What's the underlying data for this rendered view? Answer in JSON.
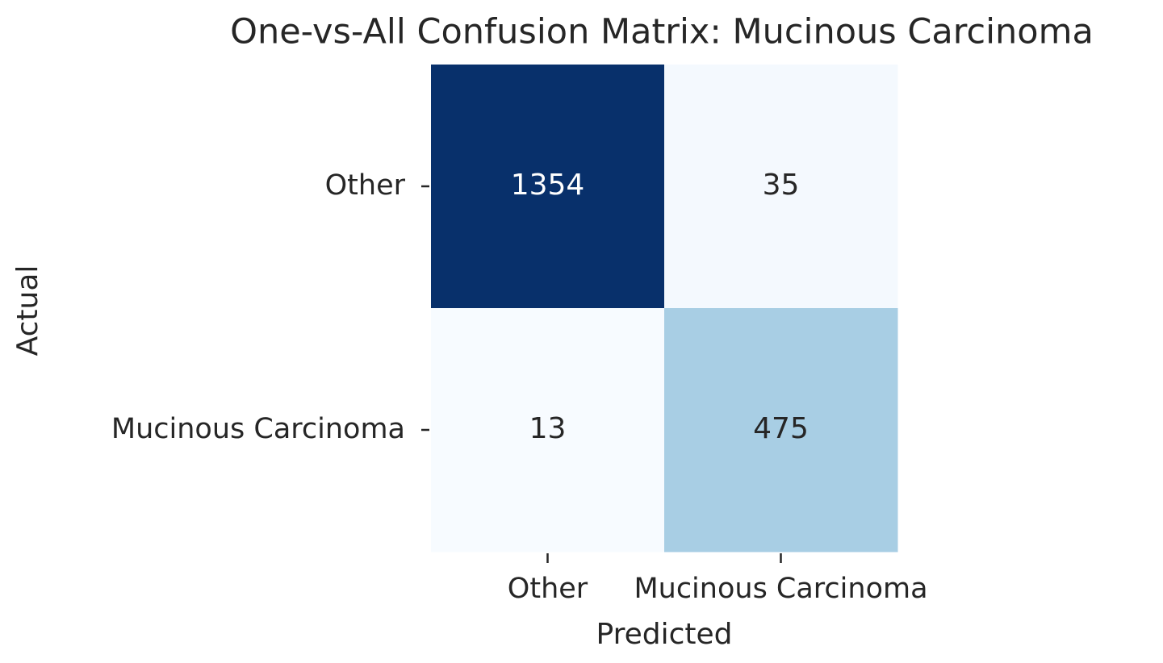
{
  "chart_data": {
    "type": "heatmap",
    "title": "One-vs-All Confusion Matrix: Mucinous Carcinoma",
    "x_label": "Predicted",
    "y_label": "Actual",
    "x_categories": [
      "Other",
      "Mucinous Carcinoma"
    ],
    "y_categories": [
      "Other",
      "Mucinous Carcinoma"
    ],
    "values": [
      [
        1354,
        35
      ],
      [
        13,
        475
      ]
    ],
    "colormap": "Blues"
  }
}
